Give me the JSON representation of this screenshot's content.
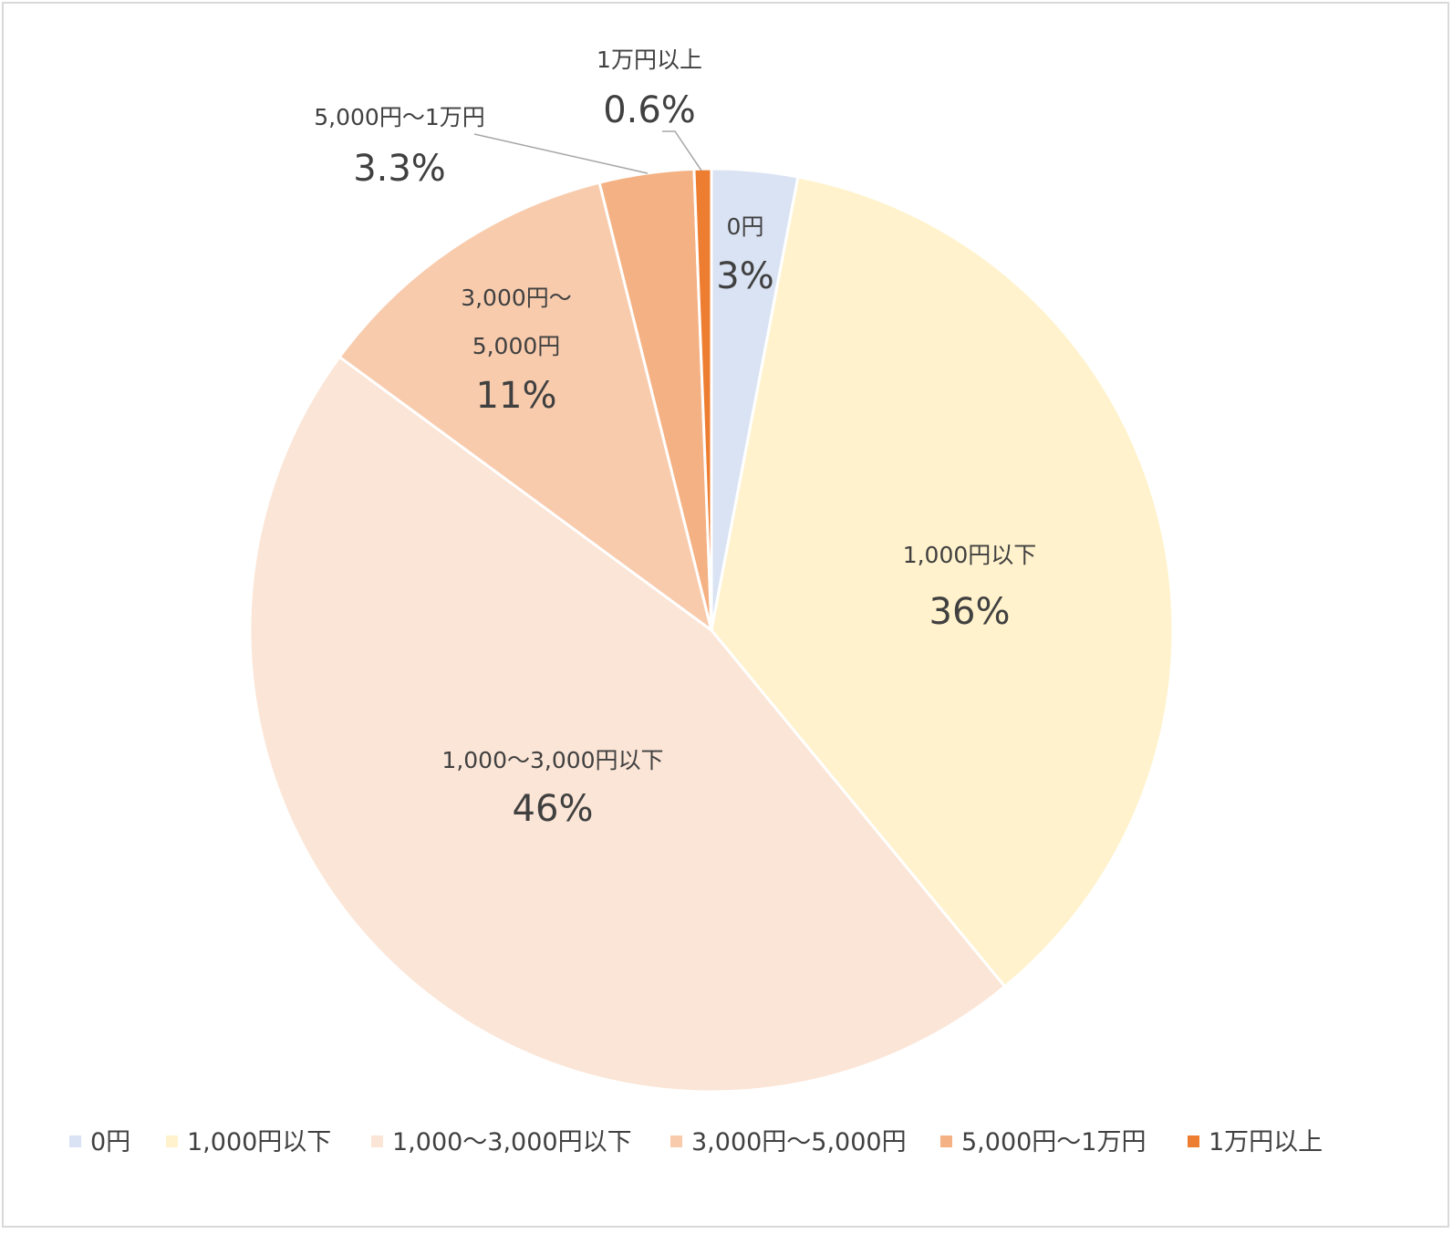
{
  "chart_data": {
    "type": "pie",
    "title": "",
    "slices": [
      {
        "label": "0円",
        "value": 3,
        "value_label": "3%",
        "color": "#dae3f3"
      },
      {
        "label": "1,000円以下",
        "value": 36,
        "value_label": "36%",
        "color": "#fff2cc"
      },
      {
        "label": "1,000〜3,000円以下",
        "value": 46,
        "value_label": "46%",
        "color": "#fbe5d6"
      },
      {
        "label": "3,000円〜5,000円",
        "value": 11,
        "value_label": "11%",
        "color": "#f8cbad"
      },
      {
        "label": "5,000円〜1万円",
        "value": 3.3,
        "value_label": "3.3%",
        "color": "#f4b183"
      },
      {
        "label": "1万円以上",
        "value": 0.6,
        "value_label": "0.6%",
        "color": "#ed7d31"
      }
    ],
    "legend_position": "bottom",
    "data_label_texts": {
      "slice_3_line1": "3,000円〜",
      "slice_3_line2": "5,000円"
    }
  }
}
